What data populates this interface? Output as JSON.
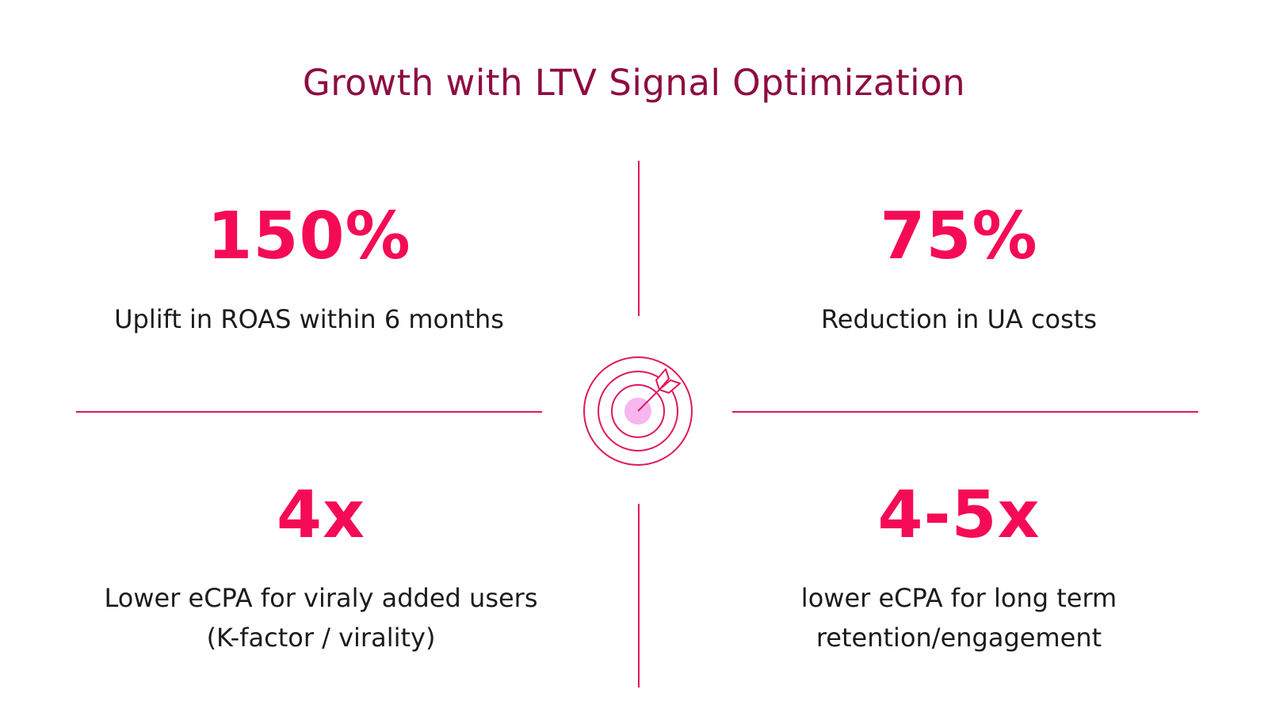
{
  "title": "Growth with LTV Signal Optimization",
  "colors": {
    "title": "#8e0c40",
    "accent": "#f50b55",
    "divider": "#e0185a",
    "target_fill": "#f8b6f0",
    "text": "#1b1b1b"
  },
  "center_icon": "target-with-dart-icon",
  "stats": {
    "top_left": {
      "value": "150%",
      "desc_lines": [
        "Uplift in ROAS within 6 months"
      ]
    },
    "top_right": {
      "value": "75%",
      "desc_lines": [
        "Reduction in UA costs"
      ]
    },
    "bottom_left": {
      "value": "4x",
      "desc_lines": [
        "Lower eCPA for viraly added users",
        "(K-factor / virality)"
      ]
    },
    "bottom_right": {
      "value": "4-5x",
      "desc_lines": [
        "lower eCPA for long term",
        "retention/engagement"
      ]
    }
  }
}
